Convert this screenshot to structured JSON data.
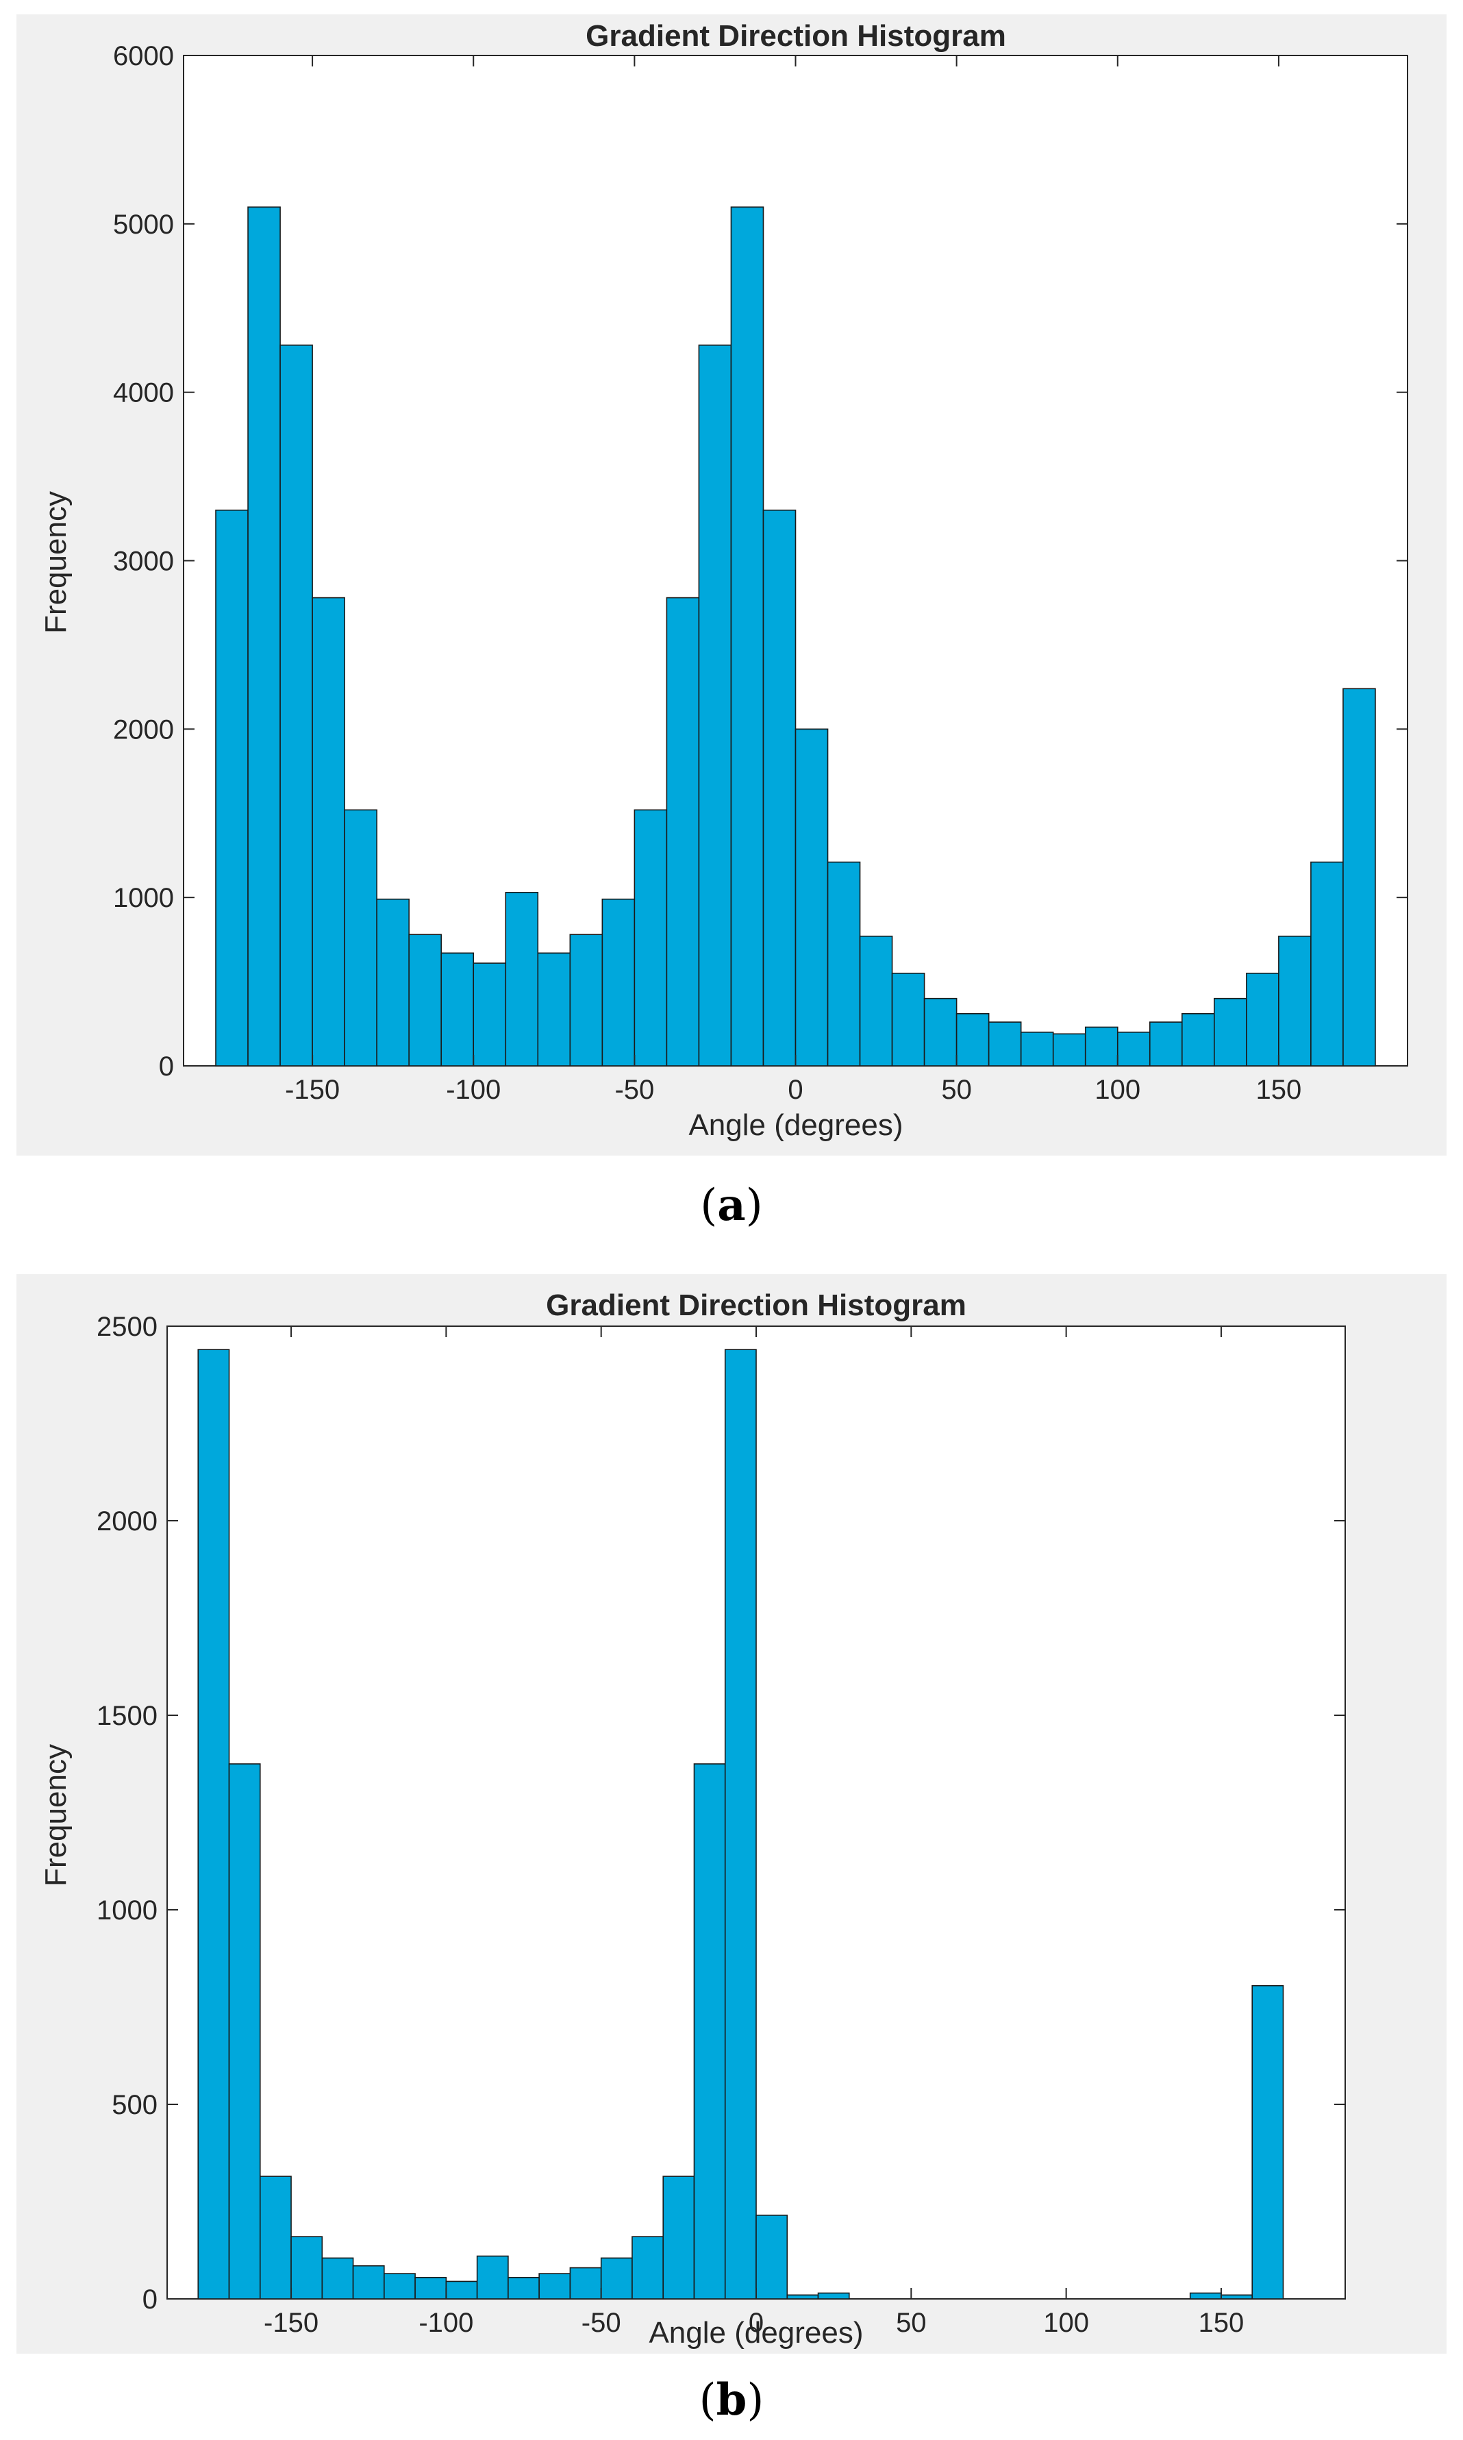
{
  "captions": {
    "a": "a",
    "b": "b"
  },
  "chart_data": [
    {
      "type": "bar",
      "panel": "a",
      "title": "Gradient Direction Histogram",
      "xlabel": "Angle (degrees)",
      "ylabel": "Frequency",
      "xlim": [
        -190,
        190
      ],
      "ylim": [
        0,
        6000
      ],
      "xticks": [
        -150,
        -100,
        -50,
        0,
        50,
        100,
        150
      ],
      "yticks": [
        0,
        1000,
        2000,
        3000,
        4000,
        5000,
        6000
      ],
      "bin_edges": [
        -180,
        180
      ],
      "bin_count": 36,
      "bar_color": "#00a8dc",
      "values": [
        3300,
        5100,
        4280,
        2780,
        1520,
        990,
        780,
        670,
        610,
        1030,
        670,
        780,
        990,
        1520,
        2780,
        4280,
        5100,
        3300,
        2000,
        1210,
        770,
        550,
        400,
        310,
        260,
        200,
        190,
        230,
        200,
        260,
        310,
        400,
        550,
        770,
        1210,
        2240
      ]
    },
    {
      "type": "bar",
      "panel": "b",
      "title": "Gradient Direction Histogram",
      "xlabel": "Angle (degrees)",
      "ylabel": "Frequency",
      "xlim": [
        -190,
        190
      ],
      "ylim": [
        0,
        2500
      ],
      "xticks": [
        -150,
        -100,
        -50,
        0,
        50,
        100,
        150
      ],
      "yticks": [
        0,
        500,
        1000,
        1500,
        2000,
        2500
      ],
      "bin_edges": [
        -180,
        180
      ],
      "bin_count": 36,
      "bar_color": "#00a8dc",
      "values": [
        2440,
        1375,
        315,
        160,
        105,
        85,
        65,
        55,
        45,
        110,
        55,
        65,
        80,
        105,
        160,
        315,
        1375,
        2440,
        215,
        10,
        15,
        0,
        0,
        0,
        0,
        0,
        0,
        0,
        0,
        0,
        0,
        0,
        15,
        10,
        805,
        0
      ]
    }
  ]
}
